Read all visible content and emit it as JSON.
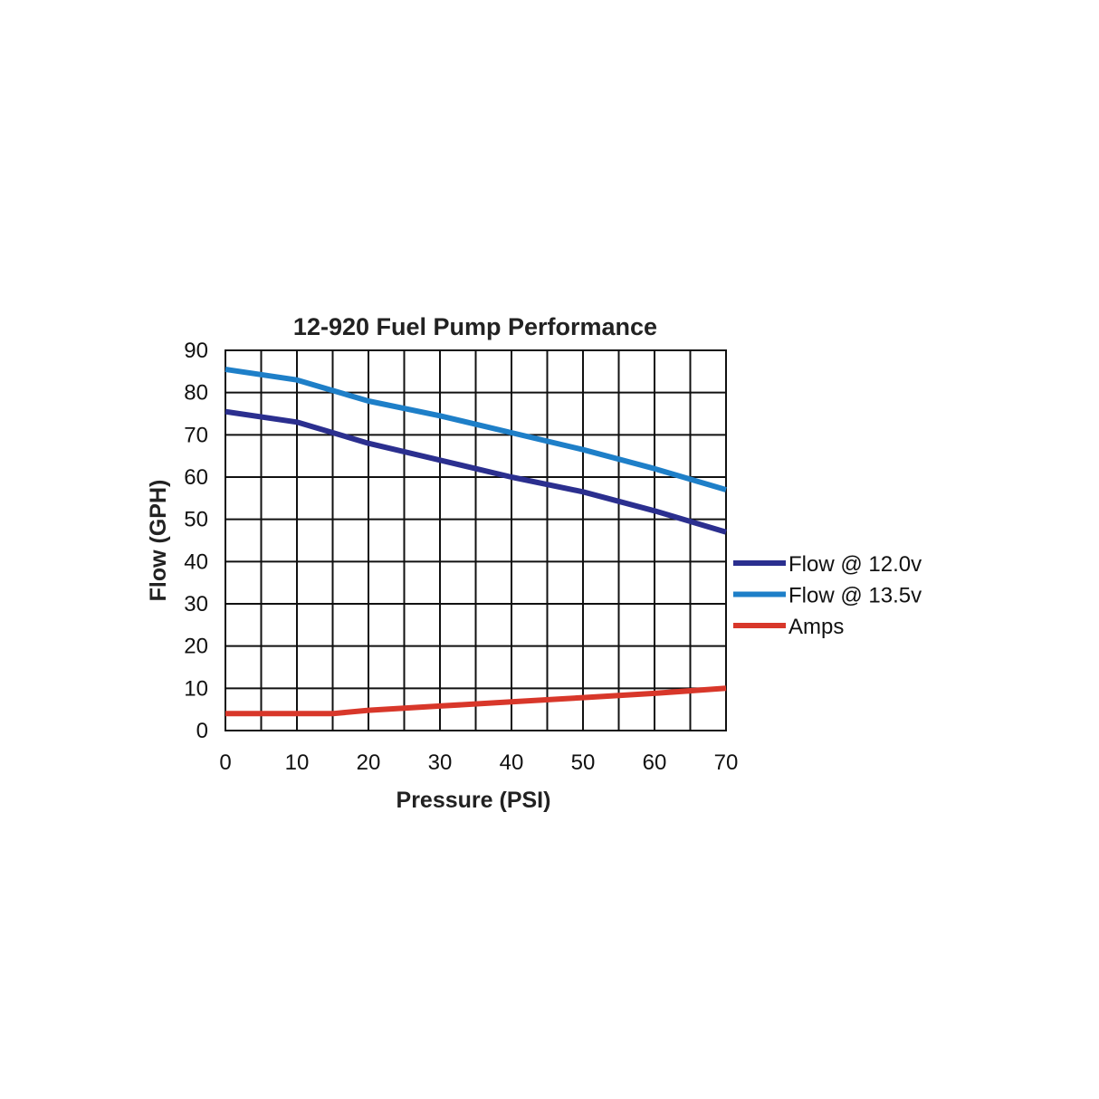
{
  "chart_data": {
    "type": "line",
    "title": "12-920 Fuel Pump Performance",
    "xlabel": "Pressure (PSI)",
    "ylabel": "Flow (GPH)",
    "xlim": [
      0,
      70
    ],
    "ylim": [
      0,
      90
    ],
    "x_ticks": [
      "0",
      "10",
      "20",
      "30",
      "40",
      "50",
      "60",
      "70"
    ],
    "y_ticks": [
      "0",
      "10",
      "20",
      "30",
      "40",
      "50",
      "60",
      "70",
      "80",
      "90"
    ],
    "grid": true,
    "grid_x_step": 5,
    "grid_y_step": 10,
    "legend_position": "right",
    "series": [
      {
        "name": "Flow @ 12.0v",
        "color": "#2b2f8f",
        "points": [
          [
            0,
            75.5
          ],
          [
            10,
            73
          ],
          [
            20,
            68
          ],
          [
            30,
            64
          ],
          [
            40,
            60
          ],
          [
            50,
            56.5
          ],
          [
            60,
            52
          ],
          [
            70,
            47
          ]
        ]
      },
      {
        "name": "Flow @ 13.5v",
        "color": "#1e7fc8",
        "points": [
          [
            0,
            85.5
          ],
          [
            10,
            83
          ],
          [
            20,
            78
          ],
          [
            30,
            74.5
          ],
          [
            40,
            70.5
          ],
          [
            50,
            66.5
          ],
          [
            60,
            62
          ],
          [
            70,
            57
          ]
        ]
      },
      {
        "name": "Amps",
        "color": "#d8372a",
        "points": [
          [
            0,
            4
          ],
          [
            10,
            4
          ],
          [
            15,
            4
          ],
          [
            20,
            4.8
          ],
          [
            30,
            5.8
          ],
          [
            40,
            6.8
          ],
          [
            50,
            7.8
          ],
          [
            60,
            8.8
          ],
          [
            70,
            10
          ]
        ]
      }
    ]
  }
}
